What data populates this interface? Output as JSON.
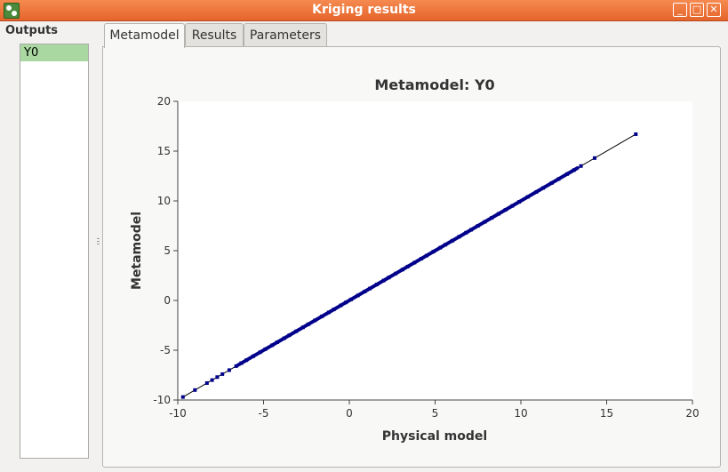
{
  "window": {
    "title": "Kriging results",
    "buttons": {
      "minimize": "_",
      "maximize": "□",
      "close": "✕"
    }
  },
  "outputs": {
    "label": "Outputs",
    "items": [
      "Y0"
    ],
    "selected": "Y0"
  },
  "tabs": [
    {
      "label": "Metamodel",
      "active": true
    },
    {
      "label": "Results",
      "active": false
    },
    {
      "label": "Parameters",
      "active": false
    }
  ],
  "chart_data": {
    "type": "scatter",
    "title": "Metamodel: Y0",
    "xlabel": "Physical model",
    "ylabel": "Metamodel",
    "xlim": [
      -10,
      20
    ],
    "ylim": [
      -10,
      20
    ],
    "xticks": [
      -10,
      -5,
      0,
      5,
      10,
      15,
      20
    ],
    "yticks": [
      -10,
      -5,
      0,
      5,
      10,
      15,
      20
    ],
    "grid": false,
    "legend": "none",
    "point_color": "#00008b",
    "line_color": "#000000",
    "diagonal": [
      [
        -9.7,
        -9.7
      ],
      [
        16.7,
        16.7
      ]
    ],
    "series": [
      {
        "values": [
          [
            -9.7,
            -9.7
          ],
          [
            -9.0,
            -9.0
          ],
          [
            -8.3,
            -8.3
          ],
          [
            -8.0,
            -8.0
          ],
          [
            -7.7,
            -7.7
          ],
          [
            -7.4,
            -7.4
          ],
          [
            -7.0,
            -7.0
          ],
          [
            -6.6,
            -6.6
          ],
          [
            -6.3,
            -6.3
          ],
          [
            -6.0,
            -6.0
          ],
          [
            -5.6,
            -5.6
          ],
          [
            -5.2,
            -5.2
          ],
          [
            -4.9,
            -4.9
          ],
          [
            -4.5,
            -4.5
          ],
          [
            -4.2,
            -4.2
          ],
          [
            -3.8,
            -3.8
          ],
          [
            -3.5,
            -3.5
          ],
          [
            -3.1,
            -3.1
          ],
          [
            -2.7,
            -2.7
          ],
          [
            -2.4,
            -2.4
          ],
          [
            -2.0,
            -2.0
          ],
          [
            -1.6,
            -1.6
          ],
          [
            -1.2,
            -1.2
          ],
          [
            -0.9,
            -0.9
          ],
          [
            -0.5,
            -0.5
          ],
          [
            -0.2,
            -0.2
          ],
          [
            0.1,
            0.1
          ],
          [
            0.5,
            0.5
          ],
          [
            0.9,
            0.9
          ],
          [
            1.2,
            1.2
          ],
          [
            1.6,
            1.6
          ],
          [
            2.0,
            2.0
          ],
          [
            2.3,
            2.3
          ],
          [
            2.7,
            2.7
          ],
          [
            3.1,
            3.1
          ],
          [
            3.4,
            3.4
          ],
          [
            3.8,
            3.8
          ],
          [
            4.2,
            4.2
          ],
          [
            4.5,
            4.5
          ],
          [
            4.9,
            4.9
          ],
          [
            5.3,
            5.3
          ],
          [
            5.6,
            5.6
          ],
          [
            6.0,
            6.0
          ],
          [
            6.4,
            6.4
          ],
          [
            6.8,
            6.8
          ],
          [
            7.1,
            7.1
          ],
          [
            7.5,
            7.5
          ],
          [
            7.9,
            7.9
          ],
          [
            8.3,
            8.3
          ],
          [
            8.7,
            8.7
          ],
          [
            9.1,
            9.1
          ],
          [
            9.5,
            9.5
          ],
          [
            9.9,
            9.9
          ],
          [
            10.4,
            10.4
          ],
          [
            10.9,
            10.9
          ],
          [
            11.3,
            11.3
          ],
          [
            11.8,
            11.8
          ],
          [
            12.2,
            12.2
          ],
          [
            12.7,
            12.7
          ],
          [
            13.1,
            13.1
          ],
          [
            13.5,
            13.5
          ],
          [
            14.3,
            14.3
          ],
          [
            16.7,
            16.7
          ]
        ]
      }
    ]
  }
}
